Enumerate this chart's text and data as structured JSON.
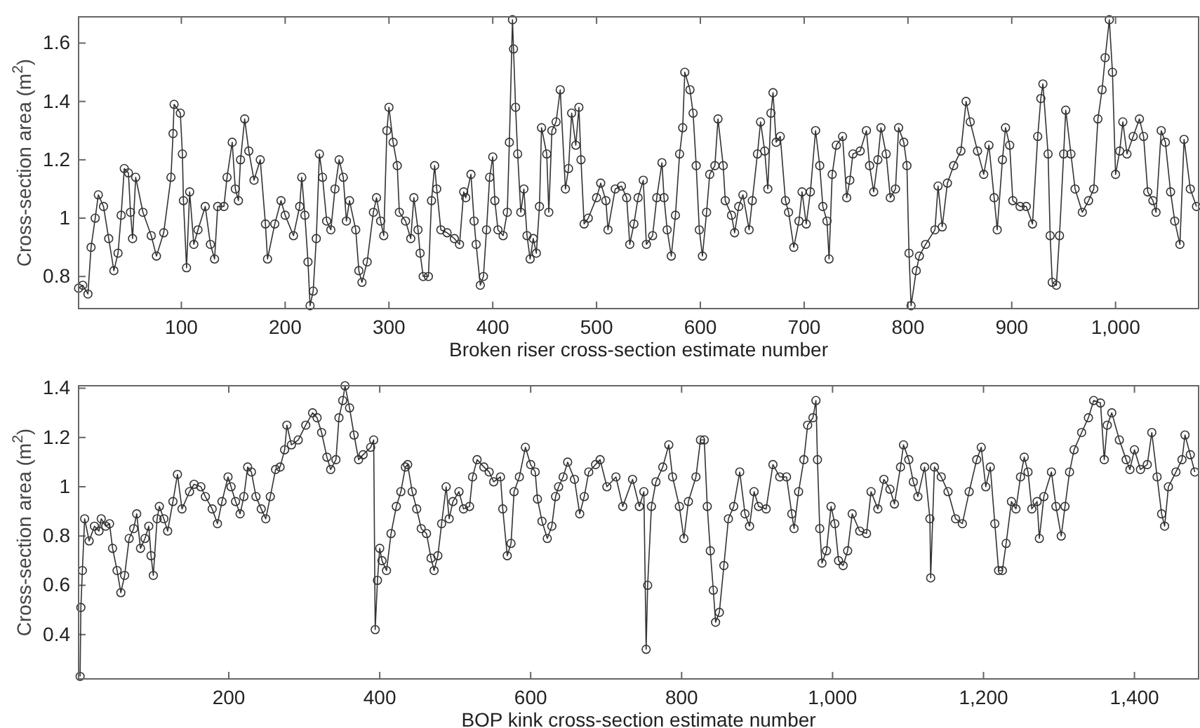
{
  "chart_data": [
    {
      "type": "line",
      "marker": "circle",
      "xlabel": "Broken riser cross-section estimate number",
      "ylabel": "Cross-section area (m$^{2}$)",
      "xlim": [
        1,
        1080
      ],
      "ylim": [
        0.69,
        1.69
      ],
      "xticks": [
        100,
        200,
        300,
        400,
        500,
        600,
        700,
        800,
        900,
        {
          "value": 1000,
          "label": "1,000"
        }
      ],
      "yticks": [
        0.8,
        1,
        1.2,
        1.4,
        1.6
      ],
      "x": [
        1,
        5,
        10,
        13,
        17,
        20,
        25,
        30,
        35,
        39,
        42,
        45,
        49,
        51,
        53,
        56,
        63,
        71,
        76,
        83,
        90,
        92,
        93,
        99,
        101,
        102,
        105,
        108,
        112,
        116,
        123,
        128,
        132,
        135,
        141,
        144,
        149,
        152,
        155,
        157,
        161,
        165,
        170,
        176,
        181,
        183,
        190,
        196,
        200,
        208,
        214,
        216,
        219,
        222,
        224,
        227,
        230,
        233,
        236,
        240,
        244,
        248,
        252,
        256,
        259,
        262,
        268,
        271,
        274,
        279,
        285,
        288,
        292,
        295,
        298,
        300,
        304,
        308,
        310,
        316,
        321,
        324,
        328,
        330,
        333,
        338,
        341,
        344,
        346,
        350,
        356,
        363,
        368,
        372,
        374,
        379,
        382,
        384,
        388,
        391,
        394,
        397,
        400,
        402,
        405,
        410,
        414,
        416,
        419,
        420,
        422,
        424,
        427,
        430,
        433,
        436,
        439,
        442,
        445,
        447,
        452,
        454,
        457,
        461,
        465,
        470,
        473,
        476,
        480,
        483,
        485,
        488,
        492,
        500,
        504,
        509,
        511,
        518,
        524,
        529,
        532,
        536,
        540,
        545,
        548,
        554,
        558,
        563,
        565,
        568,
        572,
        576,
        580,
        583,
        585,
        590,
        593,
        596,
        599,
        602,
        606,
        609,
        614,
        617,
        622,
        624,
        630,
        633,
        637,
        641,
        647,
        650,
        655,
        658,
        662,
        665,
        668,
        670,
        673,
        677,
        682,
        685,
        690,
        695,
        698,
        702,
        706,
        711,
        715,
        718,
        722,
        724,
        727,
        731,
        737,
        741,
        744,
        747,
        754,
        760,
        763,
        767,
        771,
        774,
        779,
        783,
        788,
        791,
        796,
        799,
        801,
        803,
        808,
        811,
        817,
        826,
        829,
        833,
        838,
        844,
        851,
        856,
        860,
        867,
        873,
        878,
        883,
        886,
        891,
        894,
        898,
        901,
        908,
        914,
        920,
        925,
        928,
        930,
        935,
        937,
        939,
        943,
        946,
        950,
        952,
        957,
        961,
        968,
        974,
        979,
        983,
        987,
        990,
        994,
        997,
        1000,
        1004,
        1007,
        1011,
        1017,
        1023,
        1027,
        1031,
        1036,
        1039,
        1044,
        1048,
        1053,
        1057,
        1062,
        1066,
        1072,
        1078
      ],
      "series": [
        {
          "color": "#333333",
          "values": [
            0.76,
            0.77,
            0.74,
            0.9,
            1.0,
            1.08,
            1.04,
            0.93,
            0.82,
            0.88,
            1.01,
            1.17,
            1.155,
            1.02,
            0.93,
            1.14,
            1.02,
            0.94,
            0.87,
            0.95,
            1.14,
            1.29,
            1.39,
            1.36,
            1.22,
            1.06,
            0.83,
            1.09,
            0.91,
            0.96,
            1.04,
            0.91,
            0.86,
            1.04,
            1.04,
            1.14,
            1.26,
            1.1,
            1.06,
            1.2,
            1.34,
            1.23,
            1.13,
            1.2,
            0.98,
            0.86,
            0.98,
            1.06,
            1.01,
            0.94,
            1.04,
            1.14,
            1.01,
            0.85,
            0.7,
            0.75,
            0.93,
            1.22,
            1.14,
            0.99,
            0.96,
            1.1,
            1.2,
            1.14,
            0.99,
            1.06,
            0.96,
            0.82,
            0.78,
            0.85,
            1.02,
            1.07,
            0.99,
            0.94,
            1.3,
            1.38,
            1.26,
            1.18,
            1.02,
            0.99,
            0.93,
            1.07,
            0.96,
            0.88,
            0.8,
            0.8,
            1.06,
            1.18,
            1.1,
            0.96,
            0.95,
            0.93,
            0.91,
            1.09,
            1.07,
            1.15,
            0.99,
            0.91,
            0.77,
            0.8,
            0.96,
            1.14,
            1.21,
            1.06,
            0.96,
            0.94,
            1.02,
            1.26,
            1.68,
            1.58,
            1.38,
            1.22,
            1.02,
            1.1,
            0.94,
            0.86,
            0.93,
            0.88,
            1.04,
            1.31,
            1.22,
            1.02,
            1.3,
            1.33,
            1.44,
            1.1,
            1.17,
            1.36,
            1.25,
            1.38,
            1.2,
            0.98,
            1.0,
            1.07,
            1.12,
            1.06,
            0.96,
            1.1,
            1.11,
            1.07,
            0.91,
            0.98,
            1.07,
            1.13,
            0.91,
            0.94,
            1.07,
            1.19,
            1.07,
            0.96,
            0.87,
            1.01,
            1.22,
            1.31,
            1.5,
            1.44,
            1.36,
            1.18,
            0.96,
            0.87,
            1.02,
            1.15,
            1.18,
            1.34,
            1.18,
            1.06,
            1.01,
            0.95,
            1.04,
            1.08,
            0.96,
            1.06,
            1.22,
            1.33,
            1.23,
            1.1,
            1.36,
            1.43,
            1.26,
            1.28,
            1.06,
            1.02,
            0.9,
            0.99,
            1.09,
            0.98,
            1.09,
            1.3,
            1.18,
            1.04,
            0.99,
            0.86,
            1.15,
            1.25,
            1.28,
            1.07,
            1.13,
            1.22,
            1.23,
            1.3,
            1.18,
            1.09,
            1.2,
            1.31,
            1.22,
            1.07,
            1.1,
            1.31,
            1.26,
            1.18,
            0.88,
            0.7,
            0.82,
            0.87,
            0.91,
            0.96,
            1.11,
            0.97,
            1.12,
            1.18,
            1.23,
            1.4,
            1.33,
            1.23,
            1.15,
            1.25,
            1.07,
            0.96,
            1.2,
            1.31,
            1.25,
            1.06,
            1.04,
            1.04,
            0.98,
            1.28,
            1.41,
            1.46,
            1.22,
            0.94,
            0.78,
            0.77,
            0.94,
            1.22,
            1.37,
            1.22,
            1.1,
            1.02,
            1.06,
            1.1,
            1.34,
            1.44,
            1.55,
            1.68,
            1.5,
            1.15,
            1.23,
            1.33,
            1.22,
            1.28,
            1.34,
            1.28,
            1.09,
            1.06,
            1.02,
            1.3,
            1.26,
            1.09,
            0.99,
            0.91,
            1.27,
            1.1,
            1.04
          ]
        }
      ]
    },
    {
      "type": "line",
      "marker": "circle",
      "xlabel": "BOP kink cross-section estimate number",
      "ylabel": "Cross-section area (m$^{2}$)",
      "xlim": [
        1,
        1485
      ],
      "ylim": [
        0.22,
        1.41
      ],
      "xticks": [
        200,
        400,
        600,
        800,
        {
          "value": 1000,
          "label": "1,000"
        },
        {
          "value": 1200,
          "label": "1,200"
        },
        {
          "value": 1400,
          "label": "1,400"
        }
      ],
      "yticks": [
        0.4,
        0.6,
        0.8,
        1,
        1.2,
        1.4
      ],
      "x": [
        3,
        4,
        6,
        9,
        15,
        22,
        28,
        31,
        37,
        42,
        46,
        52,
        57,
        62,
        68,
        74,
        78,
        83,
        89,
        94,
        97,
        100,
        105,
        108,
        114,
        119,
        126,
        132,
        138,
        148,
        154,
        163,
        169,
        178,
        185,
        191,
        199,
        203,
        209,
        215,
        220,
        225,
        230,
        236,
        243,
        249,
        255,
        262,
        268,
        274,
        277,
        283,
        292,
        302,
        311,
        317,
        323,
        330,
        335,
        342,
        346,
        351,
        354,
        360,
        366,
        372,
        378,
        388,
        392,
        394,
        397,
        400,
        403,
        409,
        415,
        422,
        428,
        434,
        437,
        443,
        449,
        455,
        462,
        468,
        472,
        477,
        482,
        488,
        492,
        497,
        505,
        511,
        519,
        523,
        529,
        538,
        545,
        551,
        560,
        563,
        569,
        574,
        578,
        585,
        593,
        600,
        606,
        609,
        615,
        622,
        628,
        633,
        637,
        643,
        649,
        658,
        665,
        671,
        677,
        686,
        692,
        701,
        713,
        722,
        735,
        744,
        750,
        753,
        755,
        760,
        766,
        775,
        783,
        788,
        797,
        803,
        809,
        819,
        825,
        830,
        834,
        838,
        842,
        845,
        850,
        856,
        862,
        869,
        877,
        884,
        890,
        896,
        902,
        912,
        921,
        930,
        939,
        946,
        949,
        955,
        962,
        967,
        974,
        978,
        980,
        983,
        986,
        992,
        998,
        1003,
        1008,
        1014,
        1020,
        1026,
        1036,
        1045,
        1051,
        1060,
        1068,
        1076,
        1082,
        1090,
        1094,
        1101,
        1107,
        1113,
        1122,
        1129,
        1130,
        1135,
        1144,
        1153,
        1163,
        1172,
        1181,
        1191,
        1197,
        1203,
        1209,
        1215,
        1220,
        1225,
        1230,
        1237,
        1243,
        1249,
        1254,
        1259,
        1264,
        1271,
        1274,
        1280,
        1290,
        1296,
        1303,
        1308,
        1314,
        1320,
        1330,
        1339,
        1346,
        1355,
        1360,
        1364,
        1370,
        1380,
        1389,
        1394,
        1400,
        1408,
        1417,
        1423,
        1430,
        1436,
        1440,
        1445,
        1455,
        1463,
        1467,
        1474,
        1480
      ],
      "series": [
        {
          "color": "#333333",
          "values": [
            0.23,
            0.51,
            0.66,
            0.87,
            0.78,
            0.84,
            0.82,
            0.87,
            0.84,
            0.85,
            0.75,
            0.66,
            0.57,
            0.64,
            0.79,
            0.83,
            0.89,
            0.75,
            0.79,
            0.84,
            0.72,
            0.64,
            0.87,
            0.92,
            0.87,
            0.82,
            0.94,
            1.05,
            0.91,
            0.98,
            1.01,
            1.0,
            0.96,
            0.91,
            0.85,
            0.94,
            1.04,
            1.0,
            0.94,
            0.89,
            0.96,
            1.08,
            1.06,
            0.96,
            0.91,
            0.87,
            0.96,
            1.07,
            1.08,
            1.15,
            1.25,
            1.17,
            1.19,
            1.25,
            1.3,
            1.28,
            1.22,
            1.12,
            1.07,
            1.11,
            1.28,
            1.35,
            1.41,
            1.32,
            1.21,
            1.11,
            1.13,
            1.16,
            1.19,
            0.42,
            0.62,
            0.75,
            0.7,
            0.66,
            0.81,
            0.92,
            0.98,
            1.08,
            1.09,
            0.98,
            0.91,
            0.83,
            0.81,
            0.71,
            0.66,
            0.72,
            0.85,
            1.0,
            0.87,
            0.94,
            0.98,
            0.91,
            0.92,
            1.04,
            1.11,
            1.08,
            1.06,
            1.02,
            1.04,
            0.91,
            0.72,
            0.77,
            0.98,
            1.04,
            1.16,
            1.09,
            1.06,
            0.95,
            0.86,
            0.79,
            0.84,
            0.96,
            1.0,
            1.04,
            1.1,
            1.03,
            0.89,
            0.96,
            1.06,
            1.09,
            1.11,
            1.0,
            1.04,
            0.92,
            1.03,
            0.92,
            0.98,
            0.34,
            0.6,
            0.92,
            1.02,
            1.08,
            1.17,
            1.04,
            0.92,
            0.79,
            0.94,
            1.04,
            1.19,
            1.19,
            0.92,
            0.74,
            0.58,
            0.45,
            0.49,
            0.68,
            0.87,
            0.92,
            1.06,
            0.89,
            0.84,
            0.98,
            0.92,
            0.91,
            1.09,
            1.04,
            1.04,
            0.89,
            0.83,
            0.98,
            1.11,
            1.25,
            1.28,
            1.35,
            1.11,
            0.83,
            0.69,
            0.74,
            0.92,
            0.85,
            0.7,
            0.68,
            0.74,
            0.89,
            0.82,
            0.81,
            0.98,
            0.91,
            1.03,
            0.99,
            0.93,
            1.08,
            1.17,
            1.11,
            1.02,
            0.96,
            1.08,
            0.87,
            0.63,
            1.08,
            1.04,
            0.98,
            0.87,
            0.85,
            0.98,
            1.11,
            1.16,
            1.0,
            1.08,
            0.85,
            0.66,
            0.66,
            0.77,
            0.94,
            0.91,
            1.04,
            1.12,
            1.06,
            0.91,
            0.94,
            0.79,
            0.96,
            1.06,
            0.92,
            0.8,
            0.92,
            1.06,
            1.15,
            1.22,
            1.28,
            1.35,
            1.34,
            1.11,
            1.25,
            1.3,
            1.19,
            1.11,
            1.07,
            1.15,
            1.07,
            1.09,
            1.22,
            1.04,
            0.89,
            0.84,
            1.0,
            1.06,
            1.11,
            1.21,
            1.13,
            1.06
          ]
        }
      ]
    }
  ]
}
